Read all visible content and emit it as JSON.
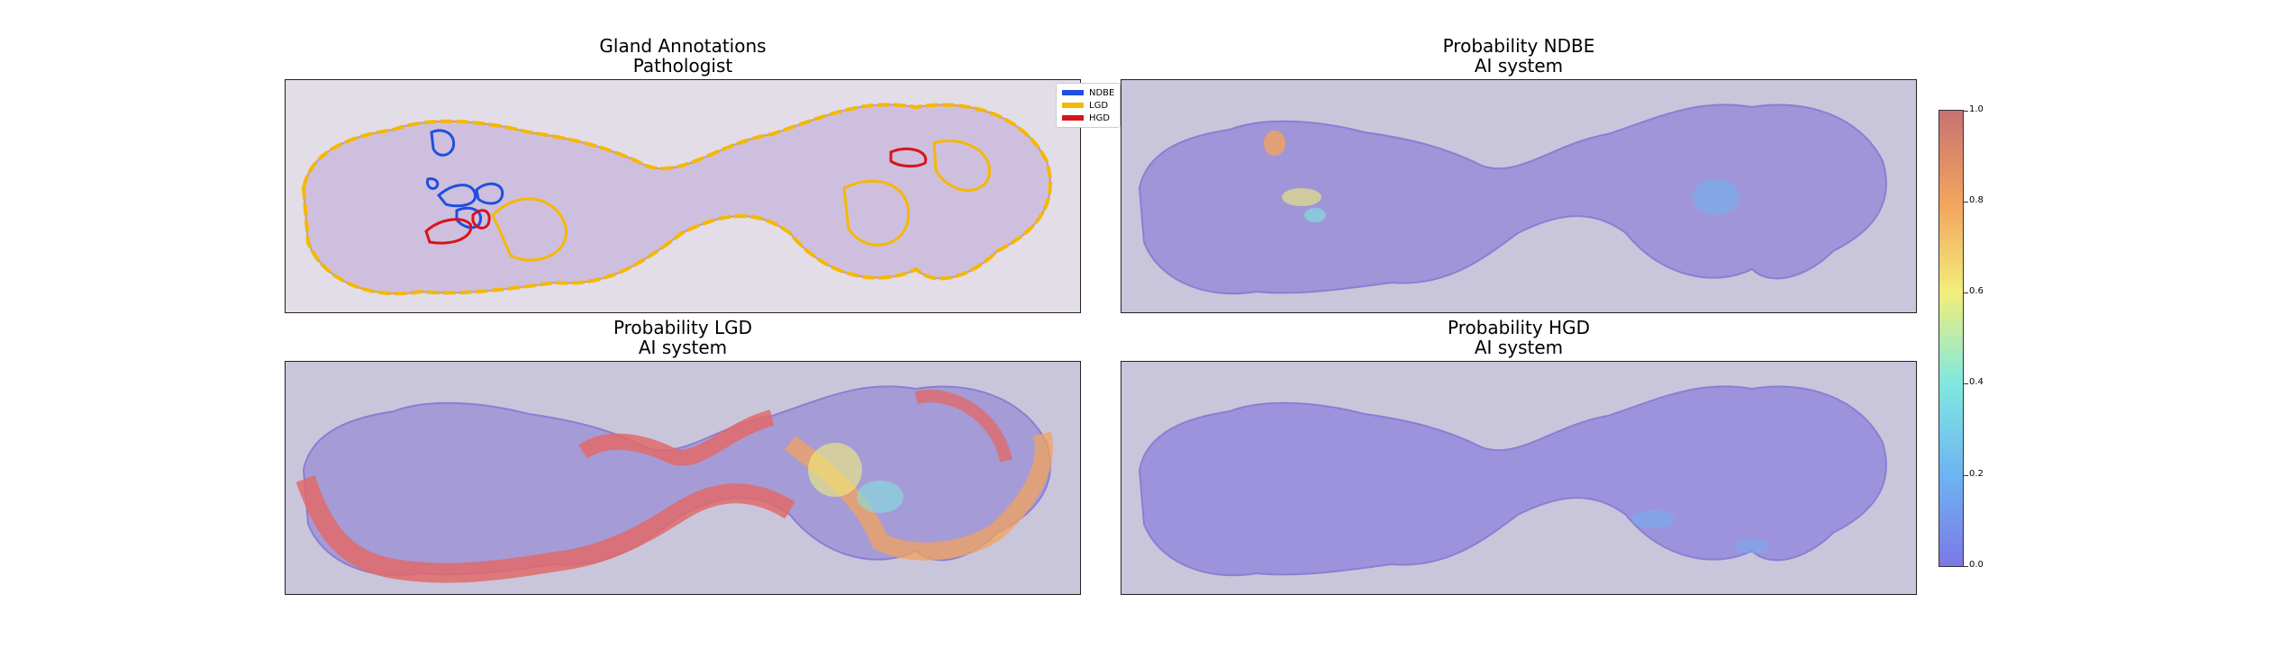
{
  "panels": {
    "annotations": {
      "title_line1": "Gland Annotations",
      "title_line2": "Pathologist"
    },
    "ndbe": {
      "title_line1": "Probability NDBE",
      "title_line2": "AI system"
    },
    "lgd": {
      "title_line1": "Probability LGD",
      "title_line2": "AI system"
    },
    "hgd": {
      "title_line1": "Probability HGD",
      "title_line2": "AI system"
    }
  },
  "legend": {
    "items": [
      {
        "label": "NDBE",
        "color": "#1f4fe0"
      },
      {
        "label": "LGD",
        "color": "#f5b800"
      },
      {
        "label": "HGD",
        "color": "#d8141c"
      }
    ]
  },
  "colorbar": {
    "ticks": [
      "0.0",
      "0.2",
      "0.4",
      "0.6",
      "0.8",
      "1.0"
    ],
    "colors": [
      "#7b78e6",
      "#6fb4f2",
      "#7fe8e0",
      "#f2ee7a",
      "#f2a35e",
      "#c77272"
    ]
  },
  "colors": {
    "panel_bg_annot": "#e2dde6",
    "panel_bg_prob": "#c9c6dc",
    "tissue": "#c9b6dc",
    "tissue_prob": "#9c8fdc"
  }
}
